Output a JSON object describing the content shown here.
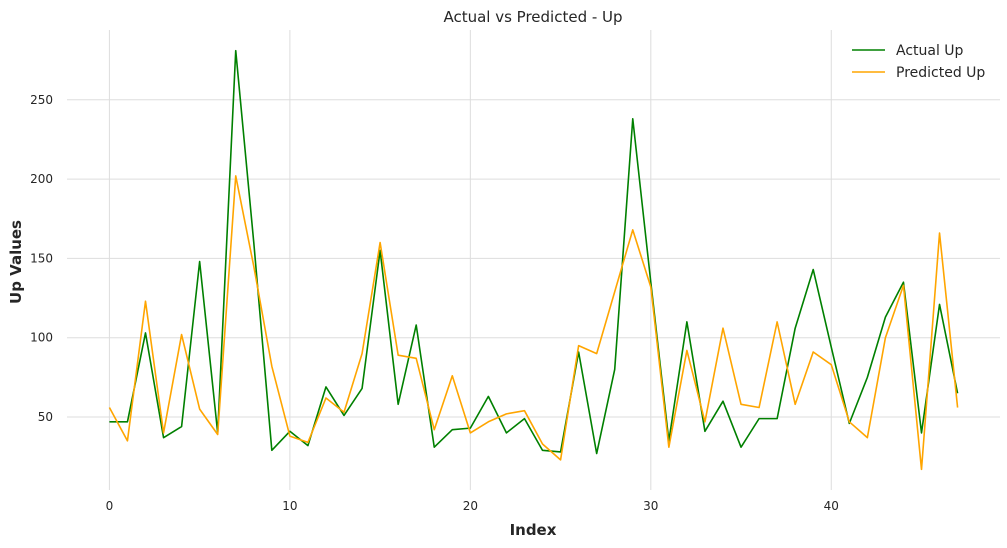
{
  "chart_data": {
    "type": "line",
    "title": "Actual vs Predicted - Up",
    "xlabel": "Index",
    "ylabel": "Up Values",
    "xlim": [
      -2.35,
      49.35
    ],
    "ylim": [
      4,
      294
    ],
    "xticks": [
      0,
      10,
      20,
      30,
      40
    ],
    "yticks": [
      50,
      100,
      150,
      200,
      250
    ],
    "grid": true,
    "legend_position": "top-right",
    "x": [
      0,
      1,
      2,
      3,
      4,
      5,
      6,
      7,
      8,
      9,
      10,
      11,
      12,
      13,
      14,
      15,
      16,
      17,
      18,
      19,
      20,
      21,
      22,
      23,
      24,
      25,
      26,
      27,
      28,
      29,
      30,
      31,
      32,
      33,
      34,
      35,
      36,
      37,
      38,
      39,
      40,
      41,
      42,
      43,
      44,
      45,
      46,
      47
    ],
    "series": [
      {
        "name": "Actual Up",
        "color": "#008000",
        "values": [
          47,
          47,
          103,
          37,
          44,
          148,
          40,
          281,
          160,
          29,
          41,
          32,
          69,
          51,
          68,
          155,
          58,
          108,
          31,
          42,
          43,
          63,
          40,
          49,
          29,
          28,
          91,
          27,
          80,
          238,
          135,
          35,
          110,
          41,
          60,
          31,
          49,
          49,
          106,
          143,
          94,
          46,
          75,
          113,
          135,
          40,
          121,
          65
        ]
      },
      {
        "name": "Predicted Up",
        "color": "#ffa500",
        "values": [
          56,
          35,
          123,
          40,
          102,
          55,
          39,
          202,
          145,
          82,
          38,
          34,
          62,
          53,
          90,
          160,
          89,
          87,
          42,
          76,
          40,
          47,
          52,
          54,
          33,
          23,
          95,
          90,
          129,
          168,
          132,
          31,
          92,
          47,
          106,
          58,
          56,
          110,
          58,
          91,
          83,
          47,
          37,
          100,
          133,
          17,
          166,
          56
        ]
      }
    ]
  }
}
